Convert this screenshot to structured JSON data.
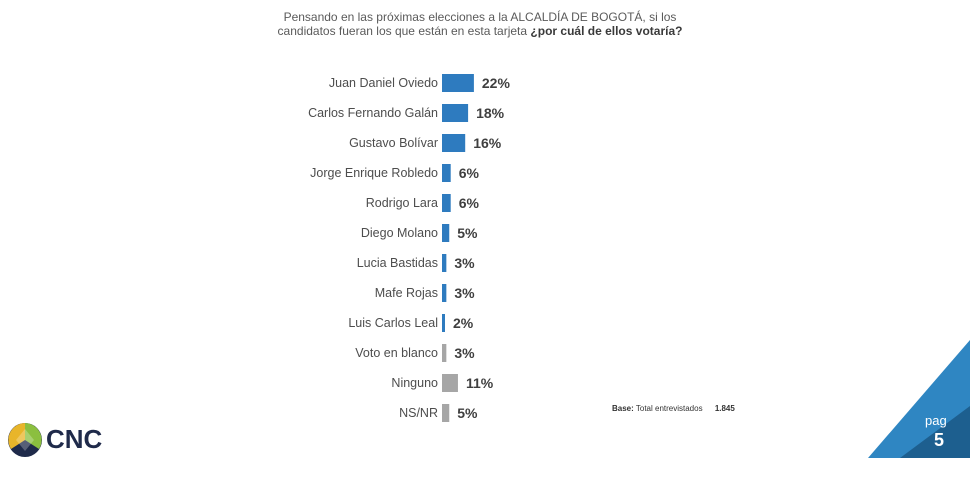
{
  "question": {
    "line1": "Pensando en las próximas elecciones a la ALCALDÍA DE BOGOTÁ, si los",
    "line2_normal": "candidatos  fueran los que están en esta tarjeta",
    "line2_bold": "¿por cuál de ellos votaría?"
  },
  "chart_data": {
    "type": "bar",
    "orientation": "horizontal",
    "categories": [
      "Juan Daniel Oviedo",
      "Carlos Fernando Galán",
      "Gustavo Bolívar",
      "Jorge Enrique Robledo",
      "Rodrigo Lara",
      "Diego Molano",
      "Lucia Bastidas",
      "Mafe Rojas",
      "Luis Carlos Leal",
      "Voto en blanco",
      "Ninguno",
      "NS/NR"
    ],
    "values": [
      22,
      18,
      16,
      6,
      6,
      5,
      3,
      3,
      2,
      3,
      11,
      5
    ],
    "value_labels": [
      "22%",
      "18%",
      "16%",
      "6%",
      "6%",
      "5%",
      "3%",
      "3%",
      "2%",
      "3%",
      "11%",
      "5%"
    ],
    "bar_colors": [
      "#2e7bbf",
      "#2e7bbf",
      "#2e7bbf",
      "#2e7bbf",
      "#2e7bbf",
      "#2e7bbf",
      "#2e7bbf",
      "#2e7bbf",
      "#2e7bbf",
      "#a6a6a6",
      "#a6a6a6",
      "#a6a6a6"
    ],
    "title": "",
    "xlabel": "",
    "ylabel": "",
    "grid": false
  },
  "base": {
    "label": "Base:",
    "text": "Total entrevistados",
    "value": "1.845"
  },
  "logo": {
    "text": "CNC"
  },
  "page": {
    "label": "pag",
    "number": "5"
  },
  "colors": {
    "blue_bar": "#2e7bbf",
    "gray_bar": "#a6a6a6",
    "corner_blue": "#2f86c2",
    "corner_dark": "#1d5f8f",
    "logo_green": "#8bbf3f",
    "logo_yellow": "#e8b52a",
    "logo_navy": "#1f2a4a"
  }
}
